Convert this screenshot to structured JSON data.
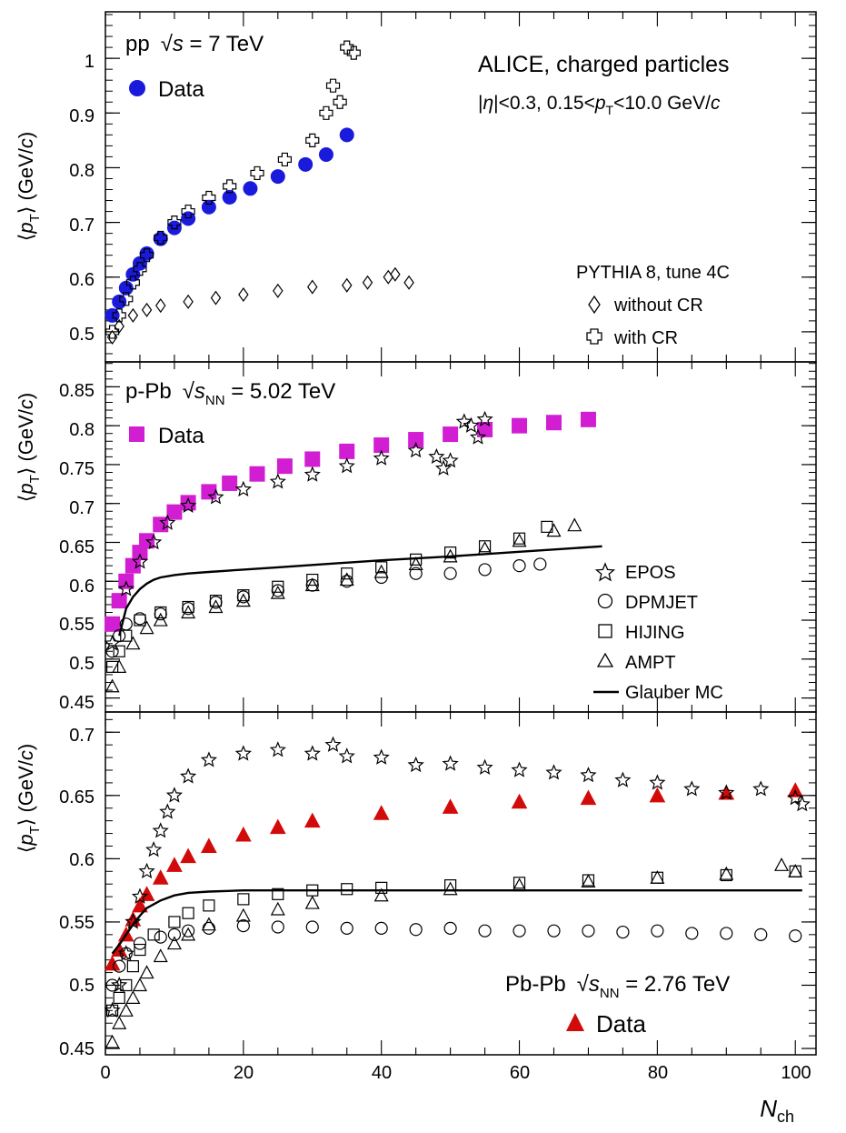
{
  "colors": {
    "pp_data": "#1a1adc",
    "ppb_data": "#d21ed2",
    "pbpb_data": "#d20a0a",
    "axis": "#000000"
  },
  "x_axis": {
    "label_main": "N",
    "label_sub": "ch",
    "range": [
      0,
      103
    ],
    "ticks": [
      "0",
      "20",
      "40",
      "60",
      "80",
      "100"
    ]
  },
  "panels": {
    "pp": {
      "ylabel_pre": "⟨",
      "ylabel_p": "p",
      "ylabel_sub": "T",
      "ylabel_post": "⟩ (GeV/",
      "ylabel_c": "c",
      "ylabel_close": ")",
      "system": "pp",
      "energy_pre": "s",
      "energy_post": " = 7 TeV",
      "data_label": "Data",
      "headline": "ALICE, charged particles",
      "cuts_pre": "|",
      "cuts_eta": "η",
      "cuts_mid": "|<0.3, 0.15<",
      "cuts_p": "p",
      "cuts_sub": "T",
      "cuts_end": "<10.0 GeV/",
      "cuts_c": "c",
      "model_title": "PYTHIA 8, tune 4C",
      "legend": [
        "without CR",
        "with CR"
      ],
      "yticks": [
        "0.5",
        "0.6",
        "0.7",
        "0.8",
        "0.9",
        "1"
      ]
    },
    "ppb": {
      "ylabel_pre": "⟨",
      "ylabel_p": "p",
      "ylabel_sub": "T",
      "ylabel_post": "⟩ (GeV/",
      "ylabel_c": "c",
      "ylabel_close": ")",
      "system": "p-Pb",
      "energy_pre": "s",
      "energy_sub": "NN",
      "energy_post": " = 5.02 TeV",
      "data_label": "Data",
      "legend": [
        "EPOS",
        "DPMJET",
        "HIJING",
        "AMPT",
        "Glauber MC"
      ],
      "yticks": [
        "0.45",
        "0.5",
        "0.55",
        "0.6",
        "0.65",
        "0.7",
        "0.75",
        "0.8",
        "0.85"
      ]
    },
    "pbpb": {
      "ylabel_pre": "⟨",
      "ylabel_p": "p",
      "ylabel_sub": "T",
      "ylabel_post": "⟩ (GeV/",
      "ylabel_c": "c",
      "ylabel_close": ")",
      "system": "Pb-Pb",
      "energy_pre": "s",
      "energy_sub": "NN",
      "energy_post": " = 2.76 TeV",
      "data_label": "Data",
      "yticks": [
        "0.45",
        "0.5",
        "0.55",
        "0.6",
        "0.65",
        "0.7"
      ]
    }
  },
  "chart_data": [
    {
      "type": "scatter",
      "title": "pp √s = 7 TeV",
      "xlabel": "N_ch",
      "ylabel": "⟨p_T⟩ (GeV/c)",
      "xlim": [
        0,
        103
      ],
      "ylim": [
        0.445,
        1.085
      ],
      "series": [
        {
          "name": "Data",
          "marker": "circle",
          "x": [
            1,
            2,
            3,
            4,
            5,
            6,
            8,
            10,
            12,
            15,
            18,
            21,
            25,
            29,
            32,
            35
          ],
          "y": [
            0.53,
            0.555,
            0.58,
            0.605,
            0.625,
            0.643,
            0.67,
            0.69,
            0.707,
            0.728,
            0.746,
            0.762,
            0.784,
            0.806,
            0.824,
            0.86
          ]
        },
        {
          "name": "without CR",
          "marker": "diamond",
          "x": [
            1,
            2,
            4,
            6,
            8,
            12,
            16,
            20,
            25,
            30,
            35,
            38,
            41,
            42,
            44
          ],
          "y": [
            0.49,
            0.51,
            0.53,
            0.54,
            0.548,
            0.555,
            0.562,
            0.568,
            0.575,
            0.582,
            0.585,
            0.59,
            0.6,
            0.605,
            0.59
          ]
        },
        {
          "name": "with CR",
          "marker": "cross",
          "x": [
            1,
            2,
            3,
            4,
            5,
            6,
            8,
            10,
            12,
            15,
            18,
            22,
            26,
            30,
            32,
            33,
            34,
            35,
            36
          ],
          "y": [
            0.5,
            0.53,
            0.56,
            0.59,
            0.615,
            0.64,
            0.672,
            0.7,
            0.72,
            0.745,
            0.766,
            0.79,
            0.815,
            0.85,
            0.9,
            0.95,
            0.92,
            1.02,
            1.01
          ]
        }
      ]
    },
    {
      "type": "scatter",
      "title": "p-Pb √sNN = 5.02 TeV",
      "xlabel": "N_ch",
      "ylabel": "⟨p_T⟩ (GeV/c)",
      "xlim": [
        0,
        103
      ],
      "ylim": [
        0.432,
        0.882
      ],
      "series": [
        {
          "name": "Data",
          "marker": "square",
          "x": [
            1,
            2,
            3,
            4,
            5,
            6,
            8,
            10,
            12,
            15,
            18,
            22,
            26,
            30,
            35,
            40,
            45,
            50,
            55,
            60,
            65,
            70
          ],
          "y": [
            0.545,
            0.575,
            0.6,
            0.62,
            0.637,
            0.652,
            0.673,
            0.689,
            0.701,
            0.715,
            0.726,
            0.738,
            0.748,
            0.757,
            0.767,
            0.775,
            0.782,
            0.789,
            0.795,
            0.8,
            0.804,
            0.808
          ]
        },
        {
          "name": "EPOS",
          "marker": "star",
          "x": [
            1,
            3,
            5,
            7,
            9,
            12,
            16,
            20,
            25,
            30,
            35,
            40,
            45,
            48,
            49,
            50,
            52,
            53,
            54,
            55
          ],
          "y": [
            0.52,
            0.59,
            0.625,
            0.65,
            0.675,
            0.697,
            0.708,
            0.718,
            0.728,
            0.737,
            0.748,
            0.758,
            0.768,
            0.76,
            0.745,
            0.755,
            0.805,
            0.8,
            0.785,
            0.808
          ]
        },
        {
          "name": "DPMJET",
          "marker": "circle",
          "x": [
            1,
            2,
            3,
            5,
            8,
            12,
            16,
            20,
            25,
            30,
            35,
            40,
            45,
            50,
            55,
            60,
            63
          ],
          "y": [
            0.51,
            0.53,
            0.545,
            0.552,
            0.558,
            0.565,
            0.573,
            0.58,
            0.588,
            0.595,
            0.6,
            0.605,
            0.61,
            0.61,
            0.615,
            0.62,
            0.622
          ]
        },
        {
          "name": "HIJING",
          "marker": "square",
          "x": [
            1,
            2,
            3,
            5,
            8,
            12,
            16,
            20,
            25,
            30,
            35,
            40,
            45,
            50,
            55,
            60,
            64
          ],
          "y": [
            0.49,
            0.51,
            0.53,
            0.55,
            0.56,
            0.567,
            0.575,
            0.582,
            0.593,
            0.602,
            0.61,
            0.618,
            0.628,
            0.637,
            0.645,
            0.655,
            0.67
          ]
        },
        {
          "name": "AMPT",
          "marker": "triangle",
          "x": [
            1,
            2,
            4,
            6,
            8,
            12,
            16,
            20,
            25,
            30,
            35,
            40,
            45,
            50,
            55,
            60,
            65,
            68
          ],
          "y": [
            0.465,
            0.49,
            0.52,
            0.54,
            0.55,
            0.56,
            0.567,
            0.575,
            0.585,
            0.595,
            0.602,
            0.612,
            0.622,
            0.632,
            0.642,
            0.652,
            0.665,
            0.672
          ]
        },
        {
          "name": "Glauber MC",
          "marker": "line",
          "x": [
            2,
            3,
            4,
            5,
            6,
            7,
            8,
            10,
            12,
            15,
            20,
            25,
            30,
            40,
            50,
            60,
            72
          ],
          "y": [
            0.53,
            0.565,
            0.58,
            0.59,
            0.597,
            0.602,
            0.605,
            0.608,
            0.61,
            0.612,
            0.615,
            0.618,
            0.621,
            0.627,
            0.632,
            0.638,
            0.645
          ]
        }
      ]
    },
    {
      "type": "scatter",
      "title": "Pb-Pb √sNN = 2.76 TeV",
      "xlabel": "N_ch",
      "ylabel": "⟨p_T⟩ (GeV/c)",
      "xlim": [
        0,
        103
      ],
      "ylim": [
        0.445,
        0.716
      ],
      "series": [
        {
          "name": "Data",
          "marker": "triangle-filled",
          "x": [
            1,
            2,
            3,
            4,
            5,
            6,
            8,
            10,
            12,
            15,
            20,
            25,
            30,
            40,
            50,
            60,
            70,
            80,
            90,
            100
          ],
          "y": [
            0.517,
            0.528,
            0.54,
            0.552,
            0.563,
            0.572,
            0.585,
            0.595,
            0.602,
            0.61,
            0.619,
            0.625,
            0.63,
            0.636,
            0.641,
            0.645,
            0.648,
            0.65,
            0.652,
            0.654
          ]
        },
        {
          "name": "EPOS",
          "marker": "star",
          "x": [
            1,
            2,
            3,
            4,
            5,
            6,
            7,
            8,
            9,
            10,
            12,
            15,
            20,
            25,
            30,
            33,
            35,
            40,
            45,
            50,
            55,
            60,
            65,
            70,
            75,
            80,
            85,
            90,
            95,
            100,
            101
          ],
          "y": [
            0.48,
            0.5,
            0.525,
            0.55,
            0.57,
            0.59,
            0.607,
            0.622,
            0.637,
            0.65,
            0.665,
            0.678,
            0.683,
            0.686,
            0.683,
            0.69,
            0.681,
            0.68,
            0.674,
            0.675,
            0.672,
            0.67,
            0.668,
            0.666,
            0.662,
            0.66,
            0.655,
            0.652,
            0.655,
            0.648,
            0.643
          ]
        },
        {
          "name": "DPMJET",
          "marker": "circle",
          "x": [
            1,
            2,
            3,
            5,
            8,
            10,
            12,
            15,
            20,
            25,
            30,
            35,
            40,
            45,
            50,
            55,
            60,
            65,
            70,
            75,
            80,
            85,
            90,
            95,
            100
          ],
          "y": [
            0.5,
            0.515,
            0.525,
            0.533,
            0.538,
            0.54,
            0.543,
            0.545,
            0.547,
            0.546,
            0.546,
            0.545,
            0.545,
            0.544,
            0.545,
            0.543,
            0.543,
            0.543,
            0.543,
            0.542,
            0.543,
            0.541,
            0.541,
            0.54,
            0.539
          ]
        },
        {
          "name": "HIJING",
          "marker": "square",
          "x": [
            1,
            2,
            3,
            4,
            5,
            7,
            10,
            12,
            15,
            20,
            25,
            30,
            35,
            40,
            50,
            60,
            70,
            80,
            90,
            100
          ],
          "y": [
            0.48,
            0.49,
            0.5,
            0.515,
            0.528,
            0.54,
            0.55,
            0.557,
            0.563,
            0.568,
            0.572,
            0.575,
            0.576,
            0.577,
            0.579,
            0.581,
            0.583,
            0.585,
            0.587,
            0.59
          ]
        },
        {
          "name": "AMPT",
          "marker": "triangle",
          "x": [
            1,
            2,
            3,
            4,
            5,
            6,
            8,
            10,
            12,
            15,
            20,
            25,
            30,
            40,
            50,
            60,
            70,
            80,
            90,
            98,
            100
          ],
          "y": [
            0.455,
            0.47,
            0.48,
            0.49,
            0.5,
            0.51,
            0.523,
            0.533,
            0.54,
            0.548,
            0.555,
            0.56,
            0.565,
            0.571,
            0.576,
            0.579,
            0.582,
            0.585,
            0.588,
            0.595,
            0.59
          ]
        },
        {
          "name": "Glauber MC",
          "marker": "line",
          "x": [
            1,
            2,
            3,
            4,
            5,
            6,
            8,
            10,
            12,
            15,
            20,
            30,
            40,
            60,
            80,
            101
          ],
          "y": [
            0.525,
            0.532,
            0.54,
            0.548,
            0.555,
            0.561,
            0.567,
            0.571,
            0.573,
            0.574,
            0.575,
            0.575,
            0.575,
            0.575,
            0.575,
            0.575
          ]
        }
      ]
    }
  ]
}
